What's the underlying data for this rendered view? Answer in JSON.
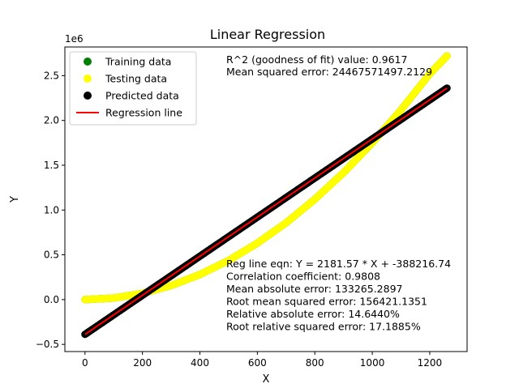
{
  "chart_data": {
    "type": "scatter",
    "title": "Linear Regression",
    "xlabel": "X",
    "ylabel": "Y",
    "y_offset_label": "1e6",
    "xlim": [
      -70,
      1330
    ],
    "ylim": [
      -580000,
      2820000
    ],
    "x_ticks": [
      0,
      200,
      400,
      600,
      800,
      1000,
      1200
    ],
    "x_tick_labels": [
      "0",
      "200",
      "400",
      "600",
      "800",
      "1000",
      "1200"
    ],
    "y_ticks": [
      -500000,
      0,
      500000,
      1000000,
      1500000,
      2000000,
      2500000
    ],
    "y_tick_labels": [
      "−0.5",
      "0.0",
      "0.5",
      "1.0",
      "1.5",
      "2.0",
      "2.5"
    ],
    "grid": false,
    "legend_position": "top-left",
    "regression": {
      "slope": 2181.57,
      "intercept": -388216.74
    },
    "series": [
      {
        "name": "Training data",
        "color": "#008000",
        "points": [
          [
            0,
            0
          ],
          [
            100,
            17500
          ],
          [
            200,
            70000
          ],
          [
            300,
            157000
          ],
          [
            400,
            280000
          ],
          [
            500,
            437000
          ],
          [
            600,
            630000
          ],
          [
            700,
            857000
          ],
          [
            800,
            1120000
          ],
          [
            900,
            1417000
          ],
          [
            1000,
            1750000
          ],
          [
            1100,
            2117000
          ],
          [
            1200,
            2520000
          ],
          [
            1260,
            2720000
          ]
        ]
      },
      {
        "name": "Testing data",
        "color": "#ffff00",
        "points": [
          [
            0,
            0
          ],
          [
            100,
            17500
          ],
          [
            200,
            70000
          ],
          [
            300,
            157000
          ],
          [
            400,
            280000
          ],
          [
            500,
            437000
          ],
          [
            600,
            630000
          ],
          [
            700,
            857000
          ],
          [
            800,
            1120000
          ],
          [
            900,
            1417000
          ],
          [
            1000,
            1750000
          ],
          [
            1100,
            2117000
          ],
          [
            1200,
            2520000
          ],
          [
            1260,
            2720000
          ]
        ]
      },
      {
        "name": "Predicted data",
        "color": "#000000",
        "points": [
          [
            0,
            -388216.74
          ],
          [
            100,
            -170059.74
          ],
          [
            200,
            48097.26
          ],
          [
            300,
            266254.26
          ],
          [
            400,
            484411.26
          ],
          [
            500,
            702568.26
          ],
          [
            600,
            920725.26
          ],
          [
            700,
            1138882.26
          ],
          [
            800,
            1357039.26
          ],
          [
            900,
            1575196.26
          ],
          [
            1000,
            1793353.26
          ],
          [
            1100,
            2011510.26
          ],
          [
            1200,
            2229667.26
          ],
          [
            1260,
            2360561.46
          ]
        ]
      },
      {
        "name": "Regression line",
        "color": "#ff0000",
        "points": [
          [
            0,
            -388216.74
          ],
          [
            1260,
            2360561.46
          ]
        ]
      }
    ],
    "annotations_top": [
      "R^2 (goodness of fit) value: 0.9617",
      "Mean squared error: 24467571497.2129"
    ],
    "annotations_bottom": [
      "Reg line eqn: Y = 2181.57 * X + -388216.74",
      "Correlation coefficient: 0.9808",
      "Mean absolute error: 133265.2897",
      "Root mean squared error: 156421.1351",
      "Relative absolute error: 14.6440%",
      "Root relative squared error: 17.1885%"
    ]
  }
}
